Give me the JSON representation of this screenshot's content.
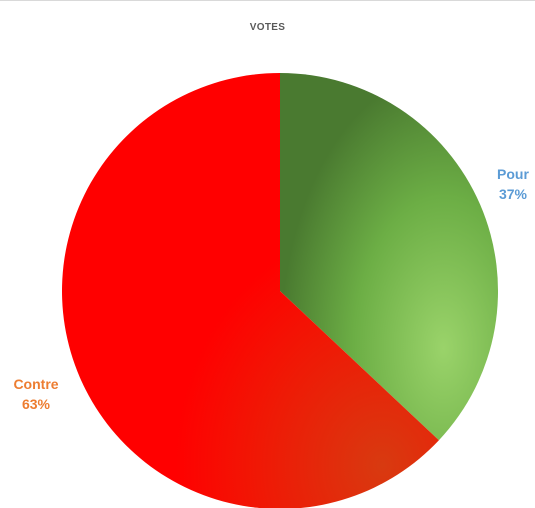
{
  "chart_data": {
    "type": "pie",
    "title": "VOTES",
    "categories": [
      "Pour",
      "Contre"
    ],
    "values": [
      37,
      63
    ],
    "unit": "%",
    "legend": "none",
    "slices": [
      {
        "label": "Pour",
        "value": 37,
        "value_text": "37%",
        "color": "#5a9e3a",
        "label_color": "#5b9bd5"
      },
      {
        "label": "Contre",
        "value": 63,
        "value_text": "63%",
        "color": "#ff0000",
        "label_color": "#ed7d31"
      }
    ]
  }
}
